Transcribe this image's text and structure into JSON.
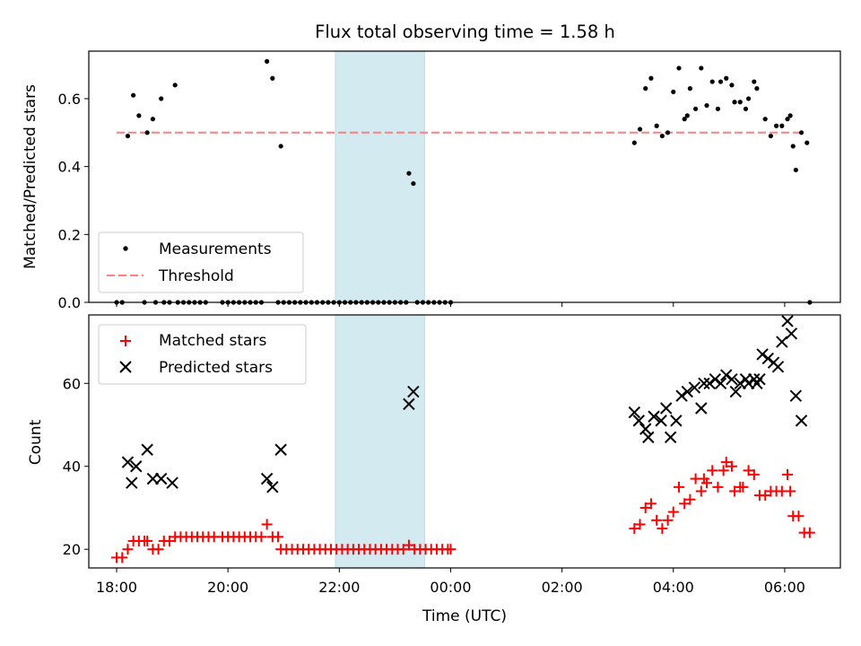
{
  "title": "Flux total observing time = 1.58 h",
  "colors": {
    "measurement": "#000000",
    "threshold": "#ff7f7f",
    "matched": "#ff0000",
    "predicted": "#000000",
    "highlight": "#d3eaf0",
    "highlight_edge": "#b9dbe4"
  },
  "chart_data": [
    {
      "type": "scatter",
      "ylabel": "Matched/Predicted stars",
      "xlabel": "",
      "xlim_hours": [
        -0.5,
        13.0
      ],
      "ylim": [
        0,
        0.74
      ],
      "y_ticks": [
        "0.0",
        "0.2",
        "0.4",
        "0.6"
      ],
      "x_tick_labels_shown": false,
      "legend": {
        "placement": "lower-left",
        "entries": [
          "Measurements",
          "Threshold"
        ]
      },
      "threshold": {
        "name": "Threshold",
        "y": 0.5,
        "x_start_h": 0.0,
        "x_end_h": 12.3
      },
      "highlight_hours": [
        3.93,
        5.53
      ],
      "series": [
        {
          "name": "Measurements",
          "marker": "dot",
          "points": [
            [
              0.0,
              0.0
            ],
            [
              0.1,
              0.0
            ],
            [
              0.2,
              0.49
            ],
            [
              0.3,
              0.61
            ],
            [
              0.4,
              0.55
            ],
            [
              0.5,
              0.0
            ],
            [
              0.55,
              0.5
            ],
            [
              0.65,
              0.54
            ],
            [
              0.7,
              0.0
            ],
            [
              0.8,
              0.6
            ],
            [
              0.85,
              0.0
            ],
            [
              0.95,
              0.0
            ],
            [
              1.05,
              0.64
            ],
            [
              1.1,
              0.0
            ],
            [
              1.2,
              0.0
            ],
            [
              1.3,
              0.0
            ],
            [
              1.4,
              0.0
            ],
            [
              1.5,
              0.0
            ],
            [
              1.6,
              0.0
            ],
            [
              1.9,
              0.0
            ],
            [
              2.0,
              0.0
            ],
            [
              2.1,
              0.0
            ],
            [
              2.2,
              0.0
            ],
            [
              2.3,
              0.0
            ],
            [
              2.4,
              0.0
            ],
            [
              2.5,
              0.0
            ],
            [
              2.6,
              0.0
            ],
            [
              2.7,
              0.71
            ],
            [
              2.8,
              0.66
            ],
            [
              2.9,
              0.0
            ],
            [
              2.95,
              0.46
            ],
            [
              3.0,
              0.0
            ],
            [
              3.1,
              0.0
            ],
            [
              3.2,
              0.0
            ],
            [
              3.3,
              0.0
            ],
            [
              3.4,
              0.0
            ],
            [
              3.5,
              0.0
            ],
            [
              3.6,
              0.0
            ],
            [
              3.7,
              0.0
            ],
            [
              3.8,
              0.0
            ],
            [
              3.9,
              0.0
            ],
            [
              4.0,
              0.0
            ],
            [
              4.1,
              0.0
            ],
            [
              4.2,
              0.0
            ],
            [
              4.3,
              0.0
            ],
            [
              4.4,
              0.0
            ],
            [
              4.5,
              0.0
            ],
            [
              4.6,
              0.0
            ],
            [
              4.7,
              0.0
            ],
            [
              4.8,
              0.0
            ],
            [
              4.9,
              0.0
            ],
            [
              5.0,
              0.0
            ],
            [
              5.1,
              0.0
            ],
            [
              5.2,
              0.0
            ],
            [
              5.25,
              0.38
            ],
            [
              5.33,
              0.35
            ],
            [
              5.4,
              0.0
            ],
            [
              5.5,
              0.0
            ],
            [
              5.6,
              0.0
            ],
            [
              5.7,
              0.0
            ],
            [
              5.8,
              0.0
            ],
            [
              5.9,
              0.0
            ],
            [
              6.0,
              0.0
            ],
            [
              9.3,
              0.47
            ],
            [
              9.4,
              0.51
            ],
            [
              9.5,
              0.63
            ],
            [
              9.6,
              0.66
            ],
            [
              9.7,
              0.52
            ],
            [
              9.8,
              0.49
            ],
            [
              9.9,
              0.5
            ],
            [
              10.0,
              0.62
            ],
            [
              10.1,
              0.69
            ],
            [
              10.2,
              0.54
            ],
            [
              10.25,
              0.55
            ],
            [
              10.3,
              0.63
            ],
            [
              10.4,
              0.57
            ],
            [
              10.5,
              0.69
            ],
            [
              10.6,
              0.58
            ],
            [
              10.7,
              0.65
            ],
            [
              10.8,
              0.57
            ],
            [
              10.85,
              0.65
            ],
            [
              10.95,
              0.66
            ],
            [
              11.05,
              0.64
            ],
            [
              11.1,
              0.59
            ],
            [
              11.2,
              0.59
            ],
            [
              11.3,
              0.57
            ],
            [
              11.35,
              0.6
            ],
            [
              11.45,
              0.65
            ],
            [
              11.5,
              0.63
            ],
            [
              11.65,
              0.54
            ],
            [
              11.75,
              0.49
            ],
            [
              11.85,
              0.52
            ],
            [
              11.95,
              0.52
            ],
            [
              12.05,
              0.54
            ],
            [
              12.1,
              0.55
            ],
            [
              12.15,
              0.46
            ],
            [
              12.2,
              0.39
            ],
            [
              12.3,
              0.5
            ],
            [
              12.4,
              0.47
            ],
            [
              12.45,
              0.0
            ]
          ]
        }
      ]
    },
    {
      "type": "scatter",
      "ylabel": "Count",
      "xlabel": "Time (UTC)",
      "xlim_hours": [
        -0.5,
        13.0
      ],
      "ylim": [
        15.5,
        76.5
      ],
      "y_ticks": [
        "20",
        "40",
        "60"
      ],
      "x_tick_labels": [
        "18:00",
        "20:00",
        "22:00",
        "00:00",
        "02:00",
        "04:00",
        "06:00"
      ],
      "legend": {
        "placement": "upper-left",
        "entries": [
          "Matched stars",
          "Predicted stars"
        ]
      },
      "highlight_hours": [
        3.93,
        5.53
      ],
      "series": [
        {
          "name": "Matched stars",
          "marker": "plus",
          "points": [
            [
              0.0,
              18
            ],
            [
              0.1,
              18
            ],
            [
              0.2,
              20
            ],
            [
              0.3,
              22
            ],
            [
              0.4,
              22
            ],
            [
              0.5,
              22
            ],
            [
              0.55,
              22
            ],
            [
              0.65,
              20
            ],
            [
              0.75,
              20
            ],
            [
              0.85,
              22
            ],
            [
              0.95,
              22
            ],
            [
              1.05,
              23
            ],
            [
              1.15,
              23
            ],
            [
              1.25,
              23
            ],
            [
              1.35,
              23
            ],
            [
              1.45,
              23
            ],
            [
              1.55,
              23
            ],
            [
              1.65,
              23
            ],
            [
              1.75,
              23
            ],
            [
              1.9,
              23
            ],
            [
              2.0,
              23
            ],
            [
              2.1,
              23
            ],
            [
              2.2,
              23
            ],
            [
              2.3,
              23
            ],
            [
              2.4,
              23
            ],
            [
              2.5,
              23
            ],
            [
              2.6,
              23
            ],
            [
              2.7,
              26
            ],
            [
              2.8,
              23
            ],
            [
              2.9,
              23
            ],
            [
              2.95,
              20
            ],
            [
              3.05,
              20
            ],
            [
              3.15,
              20
            ],
            [
              3.25,
              20
            ],
            [
              3.35,
              20
            ],
            [
              3.45,
              20
            ],
            [
              3.55,
              20
            ],
            [
              3.65,
              20
            ],
            [
              3.75,
              20
            ],
            [
              3.85,
              20
            ],
            [
              3.95,
              20
            ],
            [
              4.05,
              20
            ],
            [
              4.15,
              20
            ],
            [
              4.25,
              20
            ],
            [
              4.35,
              20
            ],
            [
              4.45,
              20
            ],
            [
              4.55,
              20
            ],
            [
              4.65,
              20
            ],
            [
              4.75,
              20
            ],
            [
              4.85,
              20
            ],
            [
              4.95,
              20
            ],
            [
              5.05,
              20
            ],
            [
              5.15,
              20
            ],
            [
              5.25,
              21
            ],
            [
              5.35,
              20
            ],
            [
              5.45,
              20
            ],
            [
              5.55,
              20
            ],
            [
              5.65,
              20
            ],
            [
              5.75,
              20
            ],
            [
              5.85,
              20
            ],
            [
              5.95,
              20
            ],
            [
              6.0,
              20
            ],
            [
              9.3,
              25
            ],
            [
              9.4,
              26
            ],
            [
              9.5,
              30
            ],
            [
              9.6,
              31
            ],
            [
              9.7,
              27
            ],
            [
              9.8,
              25
            ],
            [
              9.9,
              27
            ],
            [
              10.0,
              29
            ],
            [
              10.1,
              35
            ],
            [
              10.2,
              31
            ],
            [
              10.3,
              32
            ],
            [
              10.4,
              37
            ],
            [
              10.5,
              34
            ],
            [
              10.55,
              37
            ],
            [
              10.6,
              36
            ],
            [
              10.7,
              39
            ],
            [
              10.8,
              35
            ],
            [
              10.9,
              39
            ],
            [
              10.95,
              41
            ],
            [
              11.05,
              40
            ],
            [
              11.1,
              34
            ],
            [
              11.2,
              35
            ],
            [
              11.25,
              35
            ],
            [
              11.35,
              39
            ],
            [
              11.45,
              38
            ],
            [
              11.55,
              33
            ],
            [
              11.65,
              33
            ],
            [
              11.75,
              34
            ],
            [
              11.85,
              34
            ],
            [
              11.95,
              34
            ],
            [
              12.05,
              38
            ],
            [
              12.1,
              34
            ],
            [
              12.15,
              28
            ],
            [
              12.25,
              28
            ],
            [
              12.35,
              24
            ],
            [
              12.45,
              24
            ]
          ]
        },
        {
          "name": "Predicted stars",
          "marker": "x",
          "points": [
            [
              0.2,
              41
            ],
            [
              0.27,
              36
            ],
            [
              0.35,
              40
            ],
            [
              0.55,
              44
            ],
            [
              0.65,
              37
            ],
            [
              0.8,
              37
            ],
            [
              1.0,
              36
            ],
            [
              2.7,
              37
            ],
            [
              2.8,
              35
            ],
            [
              2.95,
              44
            ],
            [
              5.25,
              55
            ],
            [
              5.33,
              58
            ],
            [
              9.3,
              53
            ],
            [
              9.38,
              51
            ],
            [
              9.5,
              49
            ],
            [
              9.55,
              47
            ],
            [
              9.65,
              52
            ],
            [
              9.78,
              51
            ],
            [
              9.87,
              54
            ],
            [
              9.95,
              47
            ],
            [
              10.05,
              51
            ],
            [
              10.15,
              57
            ],
            [
              10.25,
              58
            ],
            [
              10.38,
              59
            ],
            [
              10.5,
              54
            ],
            [
              10.55,
              60
            ],
            [
              10.65,
              60
            ],
            [
              10.75,
              61
            ],
            [
              10.85,
              60
            ],
            [
              10.95,
              62
            ],
            [
              11.05,
              61
            ],
            [
              11.12,
              58
            ],
            [
              11.2,
              60
            ],
            [
              11.3,
              61
            ],
            [
              11.35,
              60
            ],
            [
              11.45,
              61
            ],
            [
              11.5,
              60
            ],
            [
              11.55,
              61
            ],
            [
              11.6,
              67
            ],
            [
              11.7,
              66
            ],
            [
              11.8,
              65
            ],
            [
              11.88,
              64
            ],
            [
              11.95,
              70
            ],
            [
              12.05,
              75
            ],
            [
              12.12,
              72
            ],
            [
              12.2,
              57
            ],
            [
              12.3,
              51
            ]
          ]
        }
      ]
    }
  ]
}
